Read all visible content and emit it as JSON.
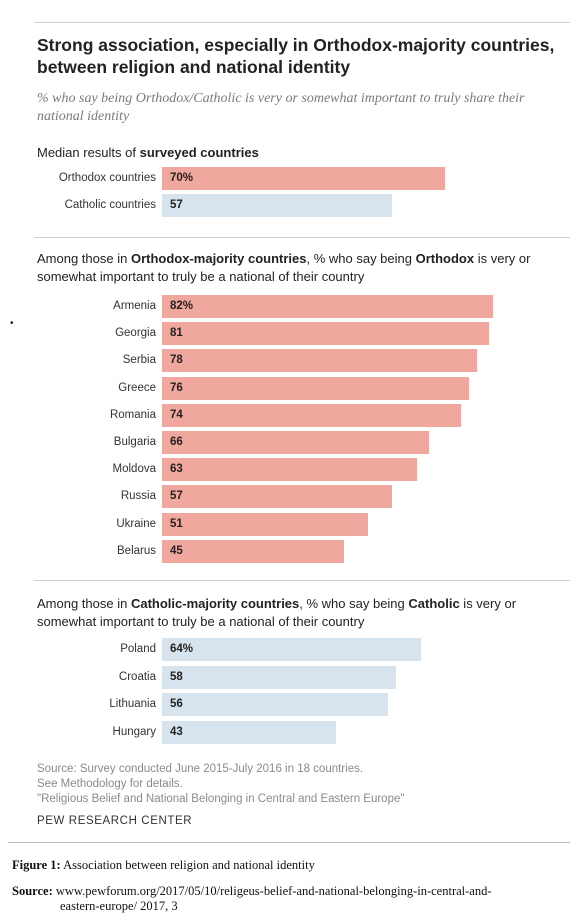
{
  "title": "Strong association, especially in Orthodox-majority countries, between religion and national identity",
  "subtitle": "% who say being Orthodox/Catholic is very or somewhat important to truly share their national identity",
  "colors": {
    "orthodox": "#f0a79d",
    "catholic": "#d7e4ee"
  },
  "chart_data": [
    {
      "type": "bar",
      "orientation": "horizontal",
      "heading_prefix": "Median results of ",
      "heading_bold": "surveyed countries",
      "categories": [
        "Orthodox countries",
        "Catholic countries"
      ],
      "values": [
        70,
        57
      ],
      "value_labels": [
        "70%",
        "57"
      ],
      "colors": [
        "orthodox",
        "catholic"
      ],
      "xlim": [
        0,
        100
      ]
    },
    {
      "type": "bar",
      "orientation": "horizontal",
      "heading_parts": [
        "Among those in ",
        "Orthodox-majority countries",
        ", % who say being ",
        "Orthodox",
        " is very or somewhat important to truly be a national of their country"
      ],
      "categories": [
        "Armenia",
        "Georgia",
        "Serbia",
        "Greece",
        "Romania",
        "Bulgaria",
        "Moldova",
        "Russia",
        "Ukraine",
        "Belarus"
      ],
      "values": [
        82,
        81,
        78,
        76,
        74,
        66,
        63,
        57,
        51,
        45
      ],
      "value_labels": [
        "82%",
        "81",
        "78",
        "76",
        "74",
        "66",
        "63",
        "57",
        "51",
        "45"
      ],
      "color": "orthodox",
      "xlim": [
        0,
        100
      ]
    },
    {
      "type": "bar",
      "orientation": "horizontal",
      "heading_parts": [
        "Among those in ",
        "Catholic-majority countries",
        ", % who say being ",
        "Catholic",
        " is very or somewhat important to truly be a national of their country"
      ],
      "categories": [
        "Poland",
        "Croatia",
        "Lithuania",
        "Hungary"
      ],
      "values": [
        64,
        58,
        56,
        43
      ],
      "value_labels": [
        "64%",
        "58",
        "56",
        "43"
      ],
      "color": "catholic",
      "xlim": [
        0,
        100
      ]
    }
  ],
  "source_lines": [
    "Source: Survey conducted June 2015-July 2016 in 18 countries.",
    "See Methodology for details.",
    "\"Religious Belief and National Belonging in Central and Eastern Europe\""
  ],
  "org": "PEW RESEARCH CENTER",
  "figure_caption": {
    "label": "Figure 1:",
    "text": " Association between religion and national identity"
  },
  "source_citation": {
    "label": "Source:",
    "line1": " www.pewforum.org/2017/05/10/religeus-belief-and-national-belonging-in-central-and-",
    "line2": "eastern-europe/ 2017, 3"
  }
}
